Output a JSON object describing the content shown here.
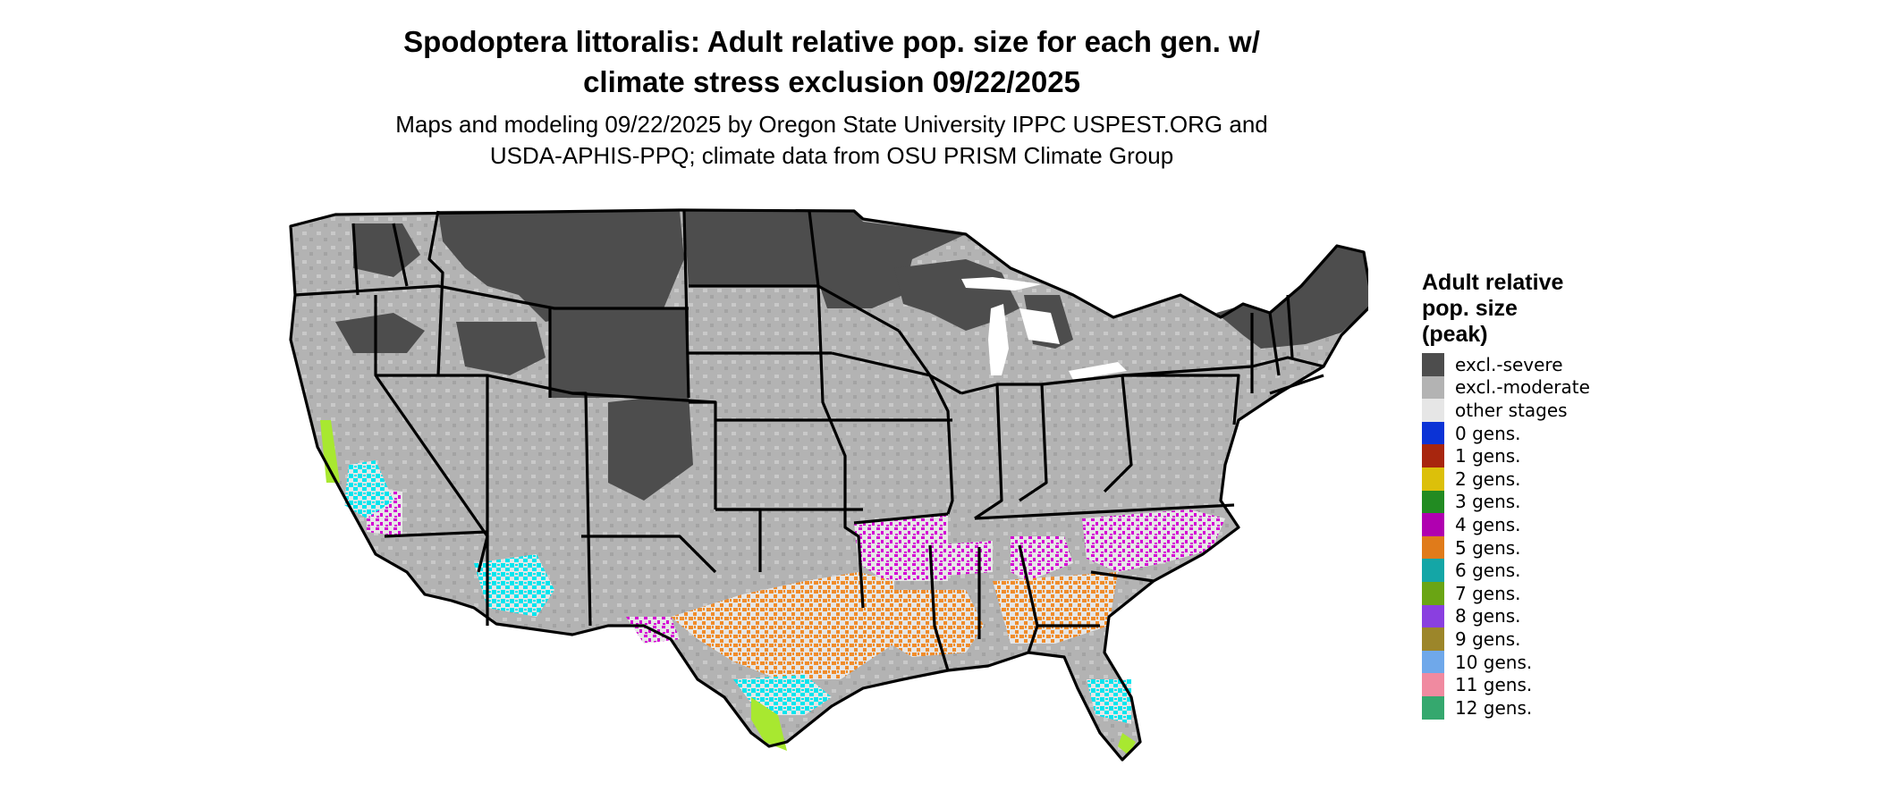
{
  "title": {
    "line1": "Spodoptera littoralis: Adult relative pop. size for each gen. w/",
    "line2": "climate stress exclusion 09/22/2025"
  },
  "subtitle": {
    "line1": "Maps and modeling 09/22/2025 by Oregon State University IPPC USPEST.ORG and",
    "line2": "USDA-APHIS-PPQ; climate data from OSU PRISM Climate Group"
  },
  "legend": {
    "title_lines": [
      "Adult relative",
      "pop. size",
      "(peak)"
    ],
    "items": [
      {
        "label": "excl.-severe",
        "color": "#4d4d4d"
      },
      {
        "label": "excl.-moderate",
        "color": "#b3b3b3"
      },
      {
        "label": "other stages",
        "color": "#e6e6e6"
      },
      {
        "label": "0 gens.",
        "color": "#0b33d6"
      },
      {
        "label": "1 gens.",
        "color": "#a8260e"
      },
      {
        "label": "2 gens.",
        "color": "#dcc00a"
      },
      {
        "label": "3 gens.",
        "color": "#228b22"
      },
      {
        "label": "4 gens.",
        "color": "#b000b0"
      },
      {
        "label": "5 gens.",
        "color": "#e07b1a"
      },
      {
        "label": "6 gens.",
        "color": "#14a6a6"
      },
      {
        "label": "7 gens.",
        "color": "#6aa514"
      },
      {
        "label": "8 gens.",
        "color": "#8a3fe0"
      },
      {
        "label": "9 gens.",
        "color": "#9c862a"
      },
      {
        "label": "10 gens.",
        "color": "#6fa8ea"
      },
      {
        "label": "11 gens.",
        "color": "#f08aa0"
      },
      {
        "label": "12 gens.",
        "color": "#35a86e"
      }
    ]
  },
  "map_colors": {
    "excl_severe": "#4d4d4d",
    "excl_moderate": "#b3b3b3",
    "other_stages": "#e6e6e6",
    "gen4": "#d400d4",
    "gen5": "#f08c2a",
    "gen6": "#00e5ee",
    "gen7": "#a8e830",
    "border": "#000000"
  }
}
